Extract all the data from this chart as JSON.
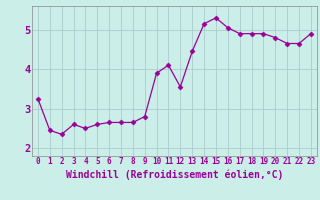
{
  "x": [
    0,
    1,
    2,
    3,
    4,
    5,
    6,
    7,
    8,
    9,
    10,
    11,
    12,
    13,
    14,
    15,
    16,
    17,
    18,
    19,
    20,
    21,
    22,
    23
  ],
  "y": [
    3.25,
    2.45,
    2.35,
    2.6,
    2.5,
    2.6,
    2.65,
    2.65,
    2.65,
    2.8,
    3.9,
    4.1,
    3.55,
    4.45,
    5.15,
    5.3,
    5.05,
    4.9,
    4.9,
    4.9,
    4.8,
    4.65,
    4.65,
    4.9
  ],
  "line_color": "#990099",
  "marker": "D",
  "marker_size": 2.5,
  "bg_color": "#cceee8",
  "grid_color": "#aacccc",
  "xlabel": "Windchill (Refroidissement éolien,°C)",
  "ylabel_ticks": [
    2,
    3,
    4,
    5
  ],
  "xtick_labels": [
    "0",
    "1",
    "2",
    "3",
    "4",
    "5",
    "6",
    "7",
    "8",
    "9",
    "10",
    "11",
    "12",
    "13",
    "14",
    "15",
    "16",
    "17",
    "18",
    "19",
    "20",
    "21",
    "22",
    "23"
  ],
  "xlim": [
    -0.5,
    23.5
  ],
  "ylim": [
    1.8,
    5.6
  ],
  "tick_color": "#990099",
  "tick_fontsize": 5.5,
  "ytick_fontsize": 7.5,
  "xlabel_fontsize": 7.0,
  "label_color": "#990099",
  "spine_color": "#888888"
}
